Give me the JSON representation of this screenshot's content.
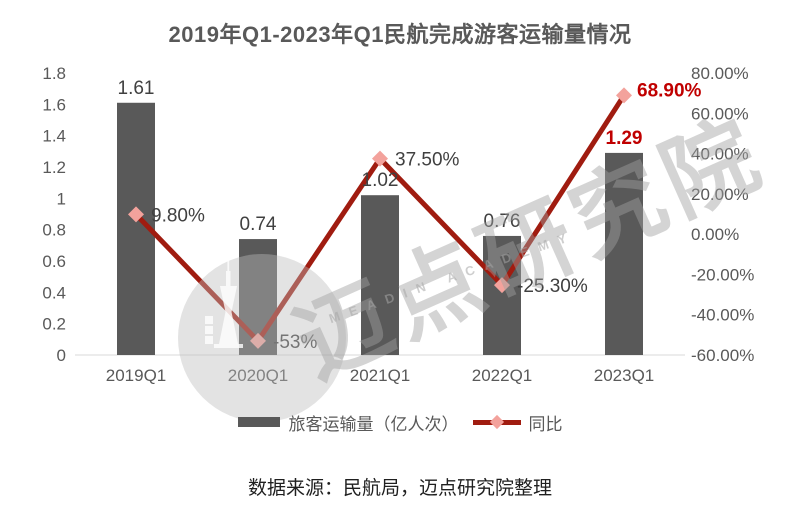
{
  "title": "2019年Q1-2023年Q1民航完成游客运输量情况",
  "source_note": "数据来源：民航局，迈点研究院整理",
  "watermark": {
    "text": "迈点研究院",
    "subtext": "MEADIN ACADEMY"
  },
  "legend": {
    "bars_label": "旅客运输量（亿人次）",
    "line_label": "同比"
  },
  "colors": {
    "bar": "#595959",
    "line": "#A01C10",
    "marker": "#F3A29C",
    "label_red": "#C00000",
    "label_gray": "#404040",
    "axis_text": "#595959",
    "baseline": "#D9D9D9",
    "title": "#595959"
  },
  "chart_data": {
    "type": "bar",
    "subtype": "combo bar+line, dual axis",
    "title": "2019年Q1-2023年Q1民航完成游客运输量情况",
    "categories": [
      "2019Q1",
      "2020Q1",
      "2021Q1",
      "2022Q1",
      "2023Q1"
    ],
    "series": [
      {
        "name": "旅客运输量（亿人次）",
        "type": "bar",
        "axis": "left",
        "values": [
          1.61,
          0.74,
          1.02,
          0.76,
          1.29
        ],
        "labels": [
          "1.61",
          "0.74",
          "1.02",
          "0.76",
          "1.29"
        ]
      },
      {
        "name": "同比",
        "type": "line",
        "axis": "right",
        "values": [
          9.8,
          -53,
          37.5,
          -25.3,
          68.9
        ],
        "labels": [
          "9.80%",
          "-53%",
          "37.50%",
          "-25.30%",
          "68.90%"
        ]
      }
    ],
    "left_axis": {
      "min": 0,
      "max": 1.8,
      "step": 0.2,
      "ticks": [
        "1.8",
        "1.6",
        "1.4",
        "1.2",
        "1",
        "0.8",
        "0.6",
        "0.4",
        "0.2",
        "0"
      ]
    },
    "right_axis": {
      "min": -60,
      "max": 80,
      "step": 20,
      "ticks": [
        "80.00%",
        "60.00%",
        "40.00%",
        "20.00%",
        "0.00%",
        "-20.00%",
        "-40.00%",
        "-60.00%"
      ]
    },
    "grid": "off",
    "legend_position": "bottom",
    "highlight_last_point": true
  }
}
